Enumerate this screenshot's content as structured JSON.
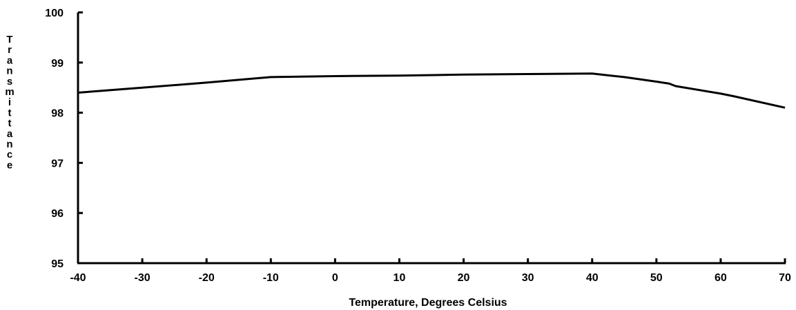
{
  "chart_data": {
    "type": "line",
    "title": "",
    "xlabel": "Temperature, Degrees Celsius",
    "ylabel": "Transmittance",
    "xlim": [
      -40,
      70
    ],
    "ylim": [
      95,
      100
    ],
    "xticks": [
      -40,
      -30,
      -20,
      -10,
      0,
      10,
      20,
      30,
      40,
      50,
      60,
      70
    ],
    "yticks": [
      95,
      96,
      97,
      98,
      99,
      100
    ],
    "grid": false,
    "legend": "none",
    "series": [
      {
        "x": [
          -40,
          -30,
          -20,
          -10,
          0,
          10,
          20,
          30,
          40,
          45,
          50,
          52,
          53,
          60,
          62,
          70
        ],
        "y": [
          98.4,
          98.5,
          98.6,
          98.71,
          98.73,
          98.74,
          98.76,
          98.77,
          98.78,
          98.71,
          98.62,
          98.58,
          98.53,
          98.38,
          98.33,
          98.1
        ]
      }
    ],
    "line_color": "#000000"
  }
}
